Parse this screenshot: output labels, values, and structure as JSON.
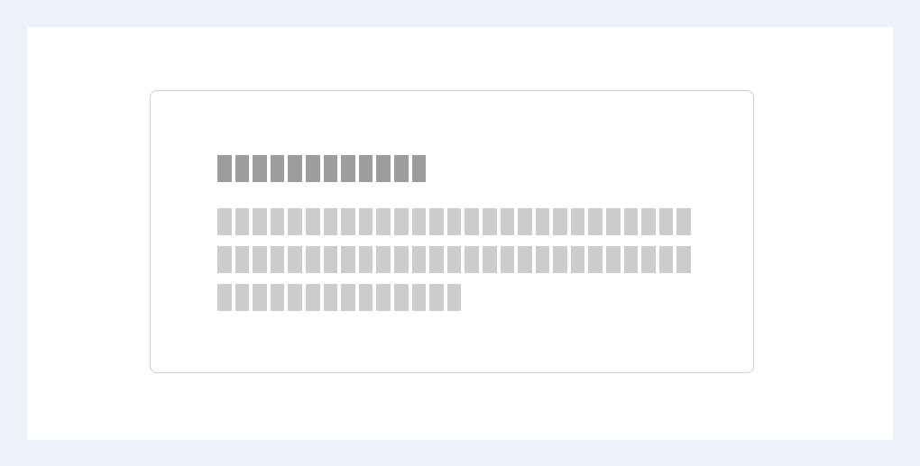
{
  "dialog": {
    "title_glyph_count": 12,
    "body_line_glyph_counts": [
      27,
      27,
      14
    ]
  },
  "colors": {
    "page_background": "#edf1f9",
    "panel_background": "#ffffff",
    "card_border": "#cfcfcf",
    "title_placeholder": "#9d9d9d",
    "body_placeholder": "#cccccc"
  }
}
